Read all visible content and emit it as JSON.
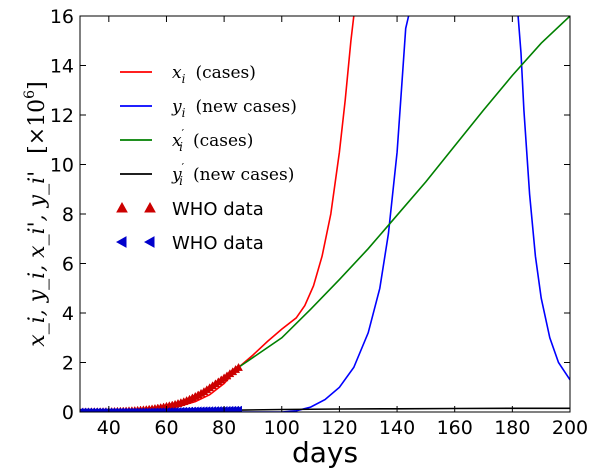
{
  "chart_data": {
    "type": "line",
    "xlabel": "days",
    "ylabel": "x_i, y_i, x_i', y_i'",
    "ylabel_unit": "[×10",
    "ylabel_exp": "6",
    "ylabel_close": "]",
    "xlim": [
      30,
      200
    ],
    "ylim": [
      0,
      16
    ],
    "xticks": [
      "40",
      "60",
      "80",
      "100",
      "120",
      "140",
      "160",
      "180",
      "200"
    ],
    "yticks": [
      "0",
      "2",
      "4",
      "6",
      "8",
      "10",
      "12",
      "14",
      "16"
    ],
    "legend_position": "upper-left",
    "grid": false,
    "series": [
      {
        "name": "x_i (cases)",
        "color": "#ff0000",
        "x": [
          30,
          40,
          50,
          60,
          65,
          70,
          75,
          80,
          85,
          90,
          95,
          100,
          105,
          108,
          111,
          114,
          117,
          120,
          122,
          124,
          125
        ],
        "y": [
          0.01,
          0.02,
          0.05,
          0.14,
          0.25,
          0.42,
          0.7,
          1.15,
          1.8,
          2.3,
          2.85,
          3.35,
          3.8,
          4.3,
          5.1,
          6.3,
          8.0,
          10.5,
          12.6,
          15.0,
          16.0
        ]
      },
      {
        "name": "y_i (new cases)",
        "color": "#0000ff",
        "x": [
          30,
          60,
          80,
          100,
          105,
          110,
          115,
          120,
          125,
          130,
          134,
          137,
          140,
          142,
          143,
          144
        ],
        "y": [
          0,
          0,
          0,
          0,
          0.05,
          0.2,
          0.5,
          1.0,
          1.8,
          3.2,
          5.0,
          7.2,
          10.5,
          13.8,
          15.5,
          16.0
        ]
      },
      {
        "name": "y_i descending branch",
        "color": "#0000ff",
        "x": [
          182,
          183,
          184,
          186,
          188,
          190,
          193,
          196,
          200
        ],
        "y": [
          16.0,
          14.5,
          12.2,
          8.8,
          6.3,
          4.6,
          3.0,
          2.0,
          1.3
        ]
      },
      {
        "name": "x_i' (cases)",
        "color": "#008000",
        "x": [
          85,
          100,
          110,
          120,
          130,
          140,
          150,
          160,
          170,
          180,
          190,
          200
        ],
        "y": [
          1.8,
          3.0,
          4.15,
          5.35,
          6.6,
          7.95,
          9.3,
          10.75,
          12.2,
          13.6,
          14.9,
          16.0
        ]
      },
      {
        "name": "y_i' (new cases)",
        "color": "#000000",
        "x": [
          30,
          60,
          80,
          100,
          120,
          140,
          160,
          180,
          200
        ],
        "y": [
          0.0,
          0.03,
          0.07,
          0.1,
          0.12,
          0.13,
          0.14,
          0.15,
          0.15
        ]
      }
    ],
    "markers": [
      {
        "name": "WHO data",
        "color": "#cc0000",
        "shape": "triangle-up",
        "x": [
          30,
          31,
          32,
          33,
          34,
          35,
          36,
          37,
          38,
          39,
          40,
          41,
          42,
          43,
          44,
          45,
          46,
          47,
          48,
          49,
          50,
          51,
          52,
          53,
          54,
          55,
          56,
          57,
          58,
          59,
          60,
          61,
          62,
          63,
          64,
          65,
          66,
          67,
          68,
          69,
          70,
          71,
          72,
          73,
          74,
          75,
          76,
          77,
          78,
          79,
          80,
          81,
          82,
          83,
          84,
          85
        ],
        "y": [
          0.005,
          0.006,
          0.007,
          0.008,
          0.009,
          0.01,
          0.012,
          0.014,
          0.016,
          0.018,
          0.02,
          0.023,
          0.026,
          0.03,
          0.034,
          0.038,
          0.043,
          0.049,
          0.055,
          0.062,
          0.07,
          0.079,
          0.089,
          0.1,
          0.113,
          0.127,
          0.143,
          0.161,
          0.181,
          0.204,
          0.23,
          0.255,
          0.28,
          0.31,
          0.345,
          0.38,
          0.42,
          0.465,
          0.515,
          0.57,
          0.63,
          0.69,
          0.755,
          0.825,
          0.9,
          0.98,
          1.06,
          1.14,
          1.22,
          1.3,
          1.38,
          1.46,
          1.55,
          1.63,
          1.72,
          1.8
        ]
      },
      {
        "name": "WHO data",
        "color": "#0000cc",
        "shape": "triangle-left",
        "x": [
          30,
          31,
          32,
          33,
          34,
          35,
          36,
          37,
          38,
          39,
          40,
          41,
          42,
          43,
          44,
          45,
          46,
          47,
          48,
          49,
          50,
          51,
          52,
          53,
          54,
          55,
          56,
          57,
          58,
          59,
          60,
          61,
          62,
          63,
          64,
          65,
          66,
          67,
          68,
          69,
          70,
          71,
          72,
          73,
          74,
          75,
          76,
          77,
          78,
          79,
          80,
          81,
          82,
          83,
          84,
          85
        ],
        "y": [
          0,
          0,
          0,
          0,
          0,
          0,
          0,
          0,
          0,
          0,
          0,
          0,
          0,
          0,
          0,
          0,
          0,
          0,
          0,
          0,
          0,
          0,
          0,
          0,
          0,
          0.005,
          0.006,
          0.008,
          0.01,
          0.012,
          0.015,
          0.018,
          0.021,
          0.024,
          0.027,
          0.03,
          0.033,
          0.036,
          0.039,
          0.042,
          0.045,
          0.048,
          0.05,
          0.052,
          0.054,
          0.056,
          0.058,
          0.06,
          0.062,
          0.064,
          0.066,
          0.068,
          0.07,
          0.072,
          0.074,
          0.076
        ]
      }
    ],
    "legend": [
      {
        "type": "line",
        "color": "#ff0000",
        "math": "x",
        "sub": "i",
        "prime": false,
        "label": "(cases)"
      },
      {
        "type": "line",
        "color": "#0000ff",
        "math": "y",
        "sub": "i",
        "prime": false,
        "label": "(new cases)"
      },
      {
        "type": "line",
        "color": "#008000",
        "math": "x",
        "sub": "i",
        "prime": true,
        "label": "(cases)"
      },
      {
        "type": "line",
        "color": "#000000",
        "math": "y",
        "sub": "i",
        "prime": true,
        "label": "(new cases)"
      },
      {
        "type": "marker",
        "color": "#cc0000",
        "shape": "triangle-up",
        "label": "WHO data"
      },
      {
        "type": "marker",
        "color": "#0000cc",
        "shape": "triangle-left",
        "label": "WHO data"
      }
    ]
  }
}
